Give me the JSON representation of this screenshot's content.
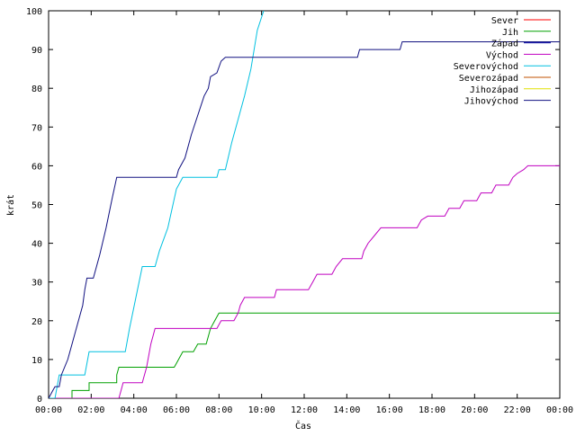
{
  "chart_data": {
    "type": "line",
    "title": "",
    "xlabel": "Čas",
    "ylabel": "krát",
    "xlim": [
      0,
      24
    ],
    "ylim": [
      0,
      100
    ],
    "x_unit": "hours",
    "grid": false,
    "legend_position": "top-right",
    "x_ticks": [
      "00:00",
      "02:00",
      "04:00",
      "06:00",
      "08:00",
      "10:00",
      "12:00",
      "14:00",
      "16:00",
      "18:00",
      "20:00",
      "22:00",
      "00:00"
    ],
    "y_ticks": [
      "0",
      "10",
      "20",
      "30",
      "40",
      "50",
      "60",
      "70",
      "80",
      "90",
      "100"
    ],
    "series": [
      {
        "name": "Sever",
        "color": "#ff0000",
        "points": []
      },
      {
        "name": "Jih",
        "color": "#00a000",
        "points": [
          [
            0.0,
            0
          ],
          [
            1.1,
            0
          ],
          [
            1.1,
            2
          ],
          [
            1.9,
            2
          ],
          [
            1.9,
            4
          ],
          [
            3.2,
            4
          ],
          [
            3.2,
            6
          ],
          [
            3.3,
            8
          ],
          [
            5.9,
            8
          ],
          [
            6.0,
            9
          ],
          [
            6.3,
            12
          ],
          [
            6.8,
            12
          ],
          [
            7.0,
            14
          ],
          [
            7.4,
            14
          ],
          [
            7.6,
            18
          ],
          [
            7.8,
            20
          ],
          [
            8.0,
            22
          ],
          [
            24.0,
            22
          ]
        ]
      },
      {
        "name": "Západ",
        "color": "#0000a0",
        "points": []
      },
      {
        "name": "Východ",
        "color": "#c000c0",
        "points": [
          [
            0.0,
            0
          ],
          [
            3.3,
            0
          ],
          [
            3.4,
            2
          ],
          [
            3.5,
            4
          ],
          [
            4.4,
            4
          ],
          [
            4.6,
            8
          ],
          [
            4.8,
            14
          ],
          [
            5.0,
            18
          ],
          [
            7.9,
            18
          ],
          [
            8.1,
            20
          ],
          [
            8.7,
            20
          ],
          [
            8.9,
            22
          ],
          [
            9.0,
            24
          ],
          [
            9.2,
            26
          ],
          [
            10.6,
            26
          ],
          [
            10.7,
            28
          ],
          [
            12.2,
            28
          ],
          [
            12.4,
            30
          ],
          [
            12.6,
            32
          ],
          [
            13.3,
            32
          ],
          [
            13.5,
            34
          ],
          [
            13.8,
            36
          ],
          [
            14.7,
            36
          ],
          [
            14.8,
            38
          ],
          [
            15.0,
            40
          ],
          [
            15.3,
            42
          ],
          [
            15.6,
            44
          ],
          [
            17.3,
            44
          ],
          [
            17.5,
            46
          ],
          [
            17.8,
            47
          ],
          [
            18.6,
            47
          ],
          [
            18.8,
            49
          ],
          [
            19.3,
            49
          ],
          [
            19.5,
            51
          ],
          [
            20.1,
            51
          ],
          [
            20.3,
            53
          ],
          [
            20.8,
            53
          ],
          [
            21.0,
            55
          ],
          [
            21.6,
            55
          ],
          [
            21.8,
            57
          ],
          [
            22.0,
            58
          ],
          [
            22.3,
            59
          ],
          [
            22.5,
            60
          ],
          [
            24.0,
            60
          ]
        ]
      },
      {
        "name": "Severovýchod",
        "color": "#00c0e0",
        "points": [
          [
            0.0,
            0
          ],
          [
            0.3,
            0
          ],
          [
            0.5,
            6
          ],
          [
            1.7,
            6
          ],
          [
            1.9,
            12
          ],
          [
            3.6,
            12
          ],
          [
            3.8,
            18
          ],
          [
            4.1,
            26
          ],
          [
            4.4,
            34
          ],
          [
            5.0,
            34
          ],
          [
            5.2,
            38
          ],
          [
            5.6,
            44
          ],
          [
            6.0,
            54
          ],
          [
            6.3,
            57
          ],
          [
            7.9,
            57
          ],
          [
            8.0,
            59
          ],
          [
            8.3,
            59
          ],
          [
            8.6,
            66
          ],
          [
            8.9,
            72
          ],
          [
            9.2,
            78
          ],
          [
            9.5,
            85
          ],
          [
            9.8,
            95
          ],
          [
            10.1,
            100
          ]
        ]
      },
      {
        "name": "Severozápad",
        "color": "#c05000",
        "points": []
      },
      {
        "name": "Jihozápad",
        "color": "#e0e000",
        "points": []
      },
      {
        "name": "Jihovýchod",
        "color": "#101080",
        "points": [
          [
            0.0,
            0
          ],
          [
            0.2,
            2
          ],
          [
            0.3,
            3
          ],
          [
            0.5,
            3
          ],
          [
            0.6,
            6
          ],
          [
            0.9,
            10
          ],
          [
            1.3,
            18
          ],
          [
            1.6,
            24
          ],
          [
            1.7,
            28
          ],
          [
            1.8,
            31
          ],
          [
            2.1,
            31
          ],
          [
            2.4,
            37
          ],
          [
            2.7,
            44
          ],
          [
            3.0,
            52
          ],
          [
            3.2,
            57
          ],
          [
            6.0,
            57
          ],
          [
            6.1,
            59
          ],
          [
            6.4,
            62
          ],
          [
            6.7,
            68
          ],
          [
            7.0,
            73
          ],
          [
            7.3,
            78
          ],
          [
            7.5,
            80
          ],
          [
            7.6,
            83
          ],
          [
            7.9,
            84
          ],
          [
            8.1,
            87
          ],
          [
            8.3,
            88
          ],
          [
            14.5,
            88
          ],
          [
            14.6,
            90
          ],
          [
            16.5,
            90
          ],
          [
            16.6,
            92
          ],
          [
            24.0,
            92
          ]
        ]
      }
    ]
  }
}
